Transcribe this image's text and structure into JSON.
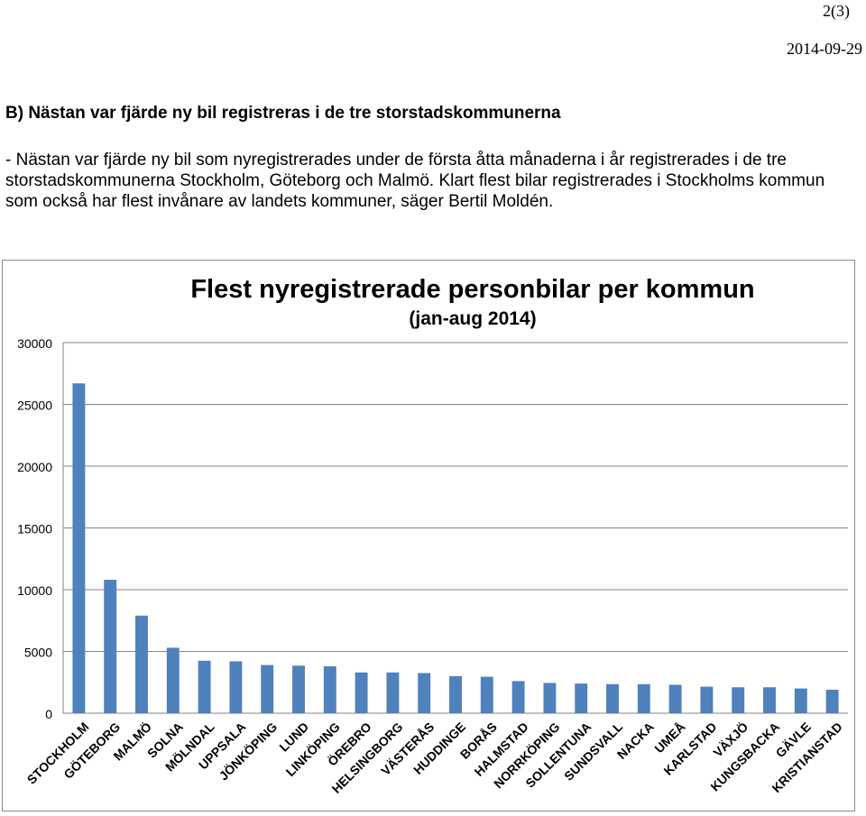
{
  "header": {
    "page_number": "2(3)",
    "date": "2014-09-29"
  },
  "section": {
    "heading": "B) Nästan var fjärde ny bil registreras i de tre storstadskommunerna",
    "paragraph": "- Nästan var fjärde ny bil som nyregistrerades under de första åtta månaderna i år registrerades i de tre storstadskommunerna Stockholm, Göteborg och Malmö. Klart flest bilar registrerades i Stockholms kommun som också har flest invånare av landets kommuner, säger Bertil Moldén."
  },
  "chart_data": {
    "type": "bar",
    "title": "Flest nyregistrerade personbilar per kommun",
    "subtitle": "(jan-aug 2014)",
    "xlabel": "",
    "ylabel": "",
    "ylim": [
      0,
      30000
    ],
    "yticks": [
      0,
      5000,
      10000,
      15000,
      20000,
      25000,
      30000
    ],
    "grid": true,
    "legend": "none",
    "bar_color": "#4f81bd",
    "categories": [
      "STOCKHOLM",
      "GÖTEBORG",
      "MALMÖ",
      "SOLNA",
      "MÖLNDAL",
      "UPPSALA",
      "JÖNKÖPING",
      "LUND",
      "LINKÖPING",
      "ÖREBRO",
      "HELSINGBORG",
      "VÄSTERÅS",
      "HUDDINGE",
      "BORÅS",
      "HALMSTAD",
      "NORRKÖPING",
      "SOLLENTUNA",
      "SUNDSVALL",
      "NACKA",
      "UMEÅ",
      "KARLSTAD",
      "VÄXJÖ",
      "KUNGSBACKA",
      "GÄVLE",
      "KRISTIANSTAD"
    ],
    "values": [
      26700,
      10800,
      7900,
      5300,
      4250,
      4200,
      3900,
      3850,
      3800,
      3300,
      3300,
      3250,
      3000,
      2950,
      2600,
      2450,
      2400,
      2350,
      2350,
      2300,
      2150,
      2100,
      2100,
      2000,
      1900
    ]
  }
}
